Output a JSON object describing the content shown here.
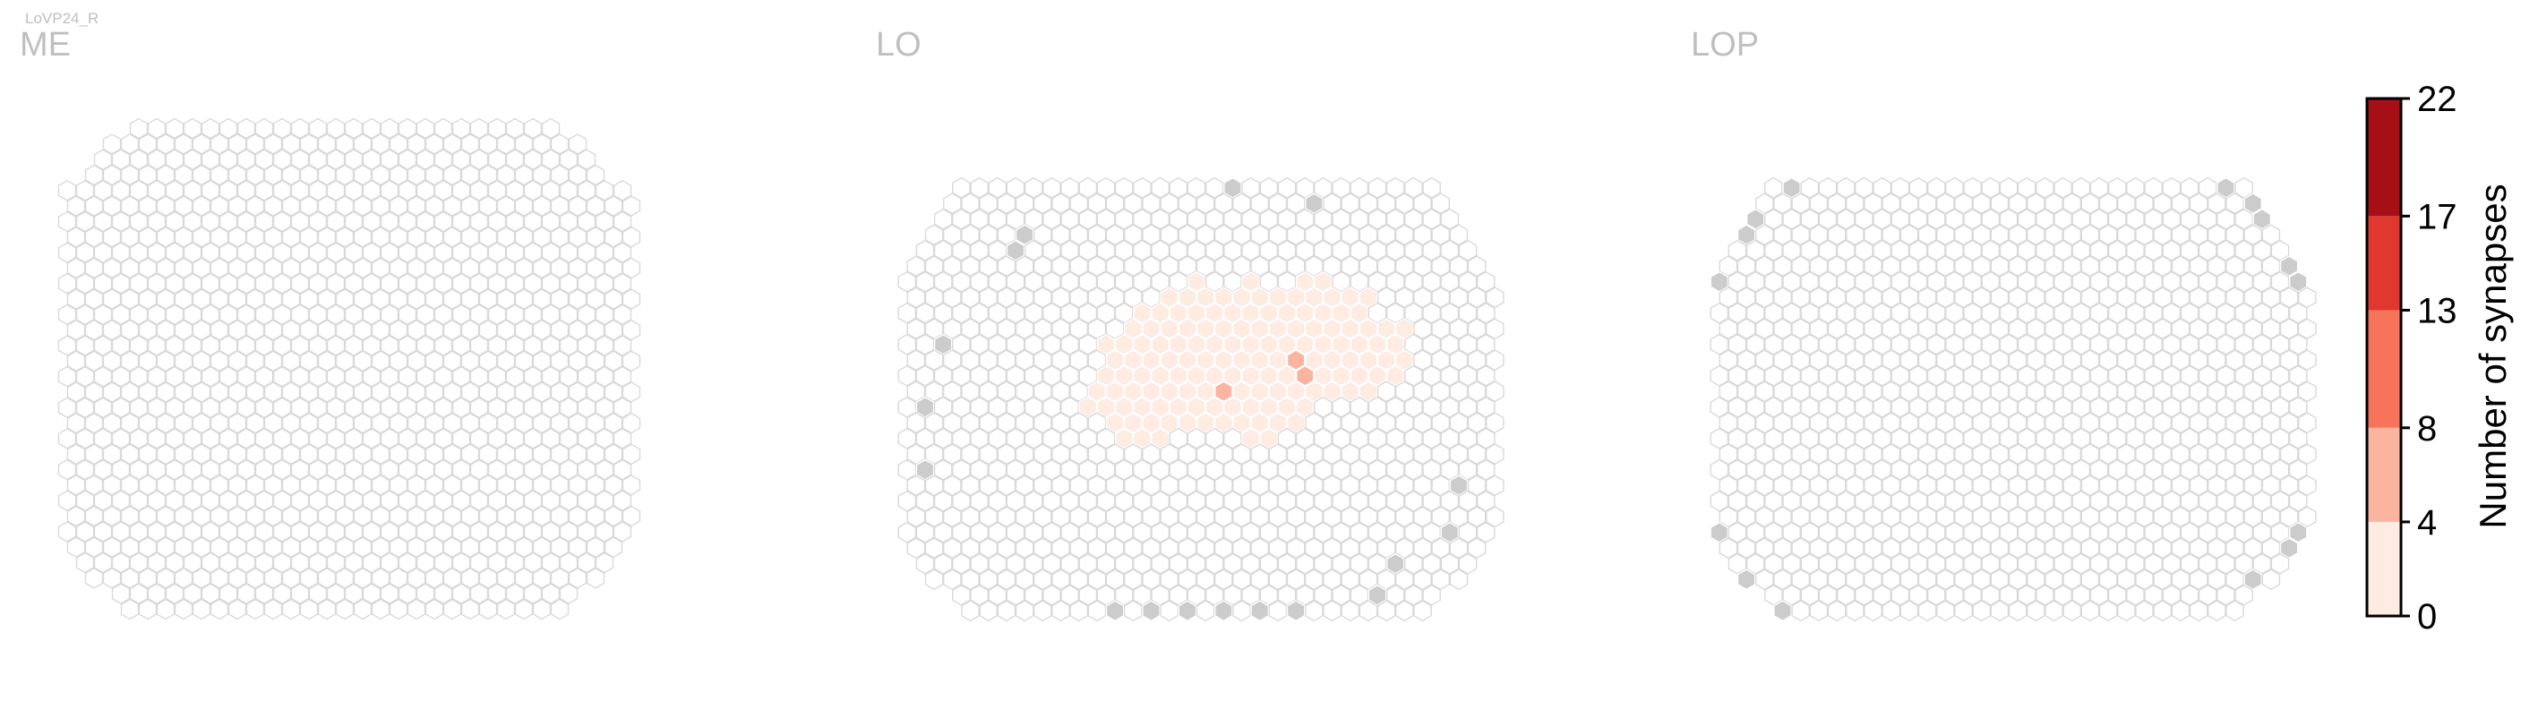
{
  "figure": {
    "cell_type": "LoVP24_R"
  },
  "chart_data": [
    {
      "type": "heatmap",
      "subtype": "hexagonal-column-map",
      "title": "ME",
      "rows": 32,
      "cols": 32,
      "cells": []
    },
    {
      "type": "heatmap",
      "subtype": "hexagonal-column-map",
      "title": "LO",
      "rows": 28,
      "cols": 33,
      "cells": [
        {
          "row": 6,
          "col": 16,
          "value": 1
        },
        {
          "row": 6,
          "col": 19,
          "value": 1
        },
        {
          "row": 6,
          "col": 22,
          "value": 1
        },
        {
          "row": 6,
          "col": 23,
          "value": 2
        },
        {
          "row": 7,
          "col": 14,
          "value": 2
        },
        {
          "row": 7,
          "col": 15,
          "value": 1
        },
        {
          "row": 7,
          "col": 16,
          "value": 1
        },
        {
          "row": 7,
          "col": 17,
          "value": 1
        },
        {
          "row": 7,
          "col": 18,
          "value": 2
        },
        {
          "row": 7,
          "col": 19,
          "value": 3
        },
        {
          "row": 7,
          "col": 20,
          "value": 3
        },
        {
          "row": 7,
          "col": 21,
          "value": 1
        },
        {
          "row": 7,
          "col": 22,
          "value": 1
        },
        {
          "row": 7,
          "col": 23,
          "value": 1
        },
        {
          "row": 7,
          "col": 24,
          "value": 1
        },
        {
          "row": 7,
          "col": 25,
          "value": 1
        },
        {
          "row": 8,
          "col": 13,
          "value": 2
        },
        {
          "row": 8,
          "col": 14,
          "value": 1
        },
        {
          "row": 8,
          "col": 15,
          "value": 1
        },
        {
          "row": 8,
          "col": 16,
          "value": 2
        },
        {
          "row": 8,
          "col": 17,
          "value": 1
        },
        {
          "row": 8,
          "col": 18,
          "value": 2
        },
        {
          "row": 8,
          "col": 19,
          "value": 2
        },
        {
          "row": 8,
          "col": 20,
          "value": 1
        },
        {
          "row": 8,
          "col": 21,
          "value": 1
        },
        {
          "row": 8,
          "col": 22,
          "value": 1
        },
        {
          "row": 8,
          "col": 23,
          "value": 1
        },
        {
          "row": 8,
          "col": 24,
          "value": 1
        },
        {
          "row": 8,
          "col": 25,
          "value": 1
        },
        {
          "row": 9,
          "col": 12,
          "value": 2
        },
        {
          "row": 9,
          "col": 13,
          "value": 1
        },
        {
          "row": 9,
          "col": 14,
          "value": 1
        },
        {
          "row": 9,
          "col": 15,
          "value": 2
        },
        {
          "row": 9,
          "col": 16,
          "value": 1
        },
        {
          "row": 9,
          "col": 17,
          "value": 2
        },
        {
          "row": 9,
          "col": 18,
          "value": 3
        },
        {
          "row": 9,
          "col": 19,
          "value": 2
        },
        {
          "row": 9,
          "col": 20,
          "value": 4
        },
        {
          "row": 9,
          "col": 21,
          "value": 2
        },
        {
          "row": 9,
          "col": 22,
          "value": 1
        },
        {
          "row": 9,
          "col": 23,
          "value": 1
        },
        {
          "row": 9,
          "col": 24,
          "value": 1
        },
        {
          "row": 9,
          "col": 25,
          "value": 2
        },
        {
          "row": 9,
          "col": 26,
          "value": 1
        },
        {
          "row": 9,
          "col": 27,
          "value": 1
        },
        {
          "row": 10,
          "col": 11,
          "value": 1
        },
        {
          "row": 10,
          "col": 12,
          "value": 1
        },
        {
          "row": 10,
          "col": 13,
          "value": 2
        },
        {
          "row": 10,
          "col": 14,
          "value": 2
        },
        {
          "row": 10,
          "col": 15,
          "value": 3
        },
        {
          "row": 10,
          "col": 16,
          "value": 1
        },
        {
          "row": 10,
          "col": 17,
          "value": 4
        },
        {
          "row": 10,
          "col": 18,
          "value": 3
        },
        {
          "row": 10,
          "col": 19,
          "value": 4
        },
        {
          "row": 10,
          "col": 20,
          "value": 3
        },
        {
          "row": 10,
          "col": 21,
          "value": 2
        },
        {
          "row": 10,
          "col": 22,
          "value": 3
        },
        {
          "row": 10,
          "col": 23,
          "value": 2
        },
        {
          "row": 10,
          "col": 24,
          "value": 1
        },
        {
          "row": 10,
          "col": 25,
          "value": 1
        },
        {
          "row": 10,
          "col": 26,
          "value": 1
        },
        {
          "row": 10,
          "col": 27,
          "value": 1
        },
        {
          "row": 11,
          "col": 11,
          "value": 2
        },
        {
          "row": 11,
          "col": 12,
          "value": 2
        },
        {
          "row": 11,
          "col": 13,
          "value": 2
        },
        {
          "row": 11,
          "col": 14,
          "value": 1
        },
        {
          "row": 11,
          "col": 15,
          "value": 3
        },
        {
          "row": 11,
          "col": 16,
          "value": 2
        },
        {
          "row": 11,
          "col": 17,
          "value": 3
        },
        {
          "row": 11,
          "col": 18,
          "value": 4
        },
        {
          "row": 11,
          "col": 19,
          "value": 3
        },
        {
          "row": 11,
          "col": 20,
          "value": 3
        },
        {
          "row": 11,
          "col": 21,
          "value": 5
        },
        {
          "row": 11,
          "col": 22,
          "value": 2
        },
        {
          "row": 11,
          "col": 23,
          "value": 3
        },
        {
          "row": 11,
          "col": 24,
          "value": 1
        },
        {
          "row": 11,
          "col": 25,
          "value": 1
        },
        {
          "row": 11,
          "col": 26,
          "value": 1
        },
        {
          "row": 11,
          "col": 27,
          "value": 1
        },
        {
          "row": 12,
          "col": 11,
          "value": 2
        },
        {
          "row": 12,
          "col": 12,
          "value": 3
        },
        {
          "row": 12,
          "col": 13,
          "value": 2
        },
        {
          "row": 12,
          "col": 14,
          "value": 3
        },
        {
          "row": 12,
          "col": 15,
          "value": 4
        },
        {
          "row": 12,
          "col": 16,
          "value": 2
        },
        {
          "row": 12,
          "col": 17,
          "value": 3
        },
        {
          "row": 12,
          "col": 18,
          "value": 4
        },
        {
          "row": 12,
          "col": 19,
          "value": 3
        },
        {
          "row": 12,
          "col": 20,
          "value": 2
        },
        {
          "row": 12,
          "col": 21,
          "value": 3
        },
        {
          "row": 12,
          "col": 22,
          "value": 5
        },
        {
          "row": 12,
          "col": 23,
          "value": 1
        },
        {
          "row": 12,
          "col": 24,
          "value": 3
        },
        {
          "row": 12,
          "col": 25,
          "value": 1
        },
        {
          "row": 12,
          "col": 26,
          "value": 1
        },
        {
          "row": 12,
          "col": 27,
          "value": 1
        },
        {
          "row": 13,
          "col": 10,
          "value": 1
        },
        {
          "row": 13,
          "col": 11,
          "value": 3
        },
        {
          "row": 13,
          "col": 12,
          "value": 2
        },
        {
          "row": 13,
          "col": 13,
          "value": 2
        },
        {
          "row": 13,
          "col": 14,
          "value": 4
        },
        {
          "row": 13,
          "col": 15,
          "value": 2
        },
        {
          "row": 13,
          "col": 16,
          "value": 3
        },
        {
          "row": 13,
          "col": 17,
          "value": 5
        },
        {
          "row": 13,
          "col": 18,
          "value": 3
        },
        {
          "row": 13,
          "col": 19,
          "value": 4
        },
        {
          "row": 13,
          "col": 20,
          "value": 3
        },
        {
          "row": 13,
          "col": 21,
          "value": 2
        },
        {
          "row": 13,
          "col": 22,
          "value": 3
        },
        {
          "row": 13,
          "col": 23,
          "value": 1
        },
        {
          "row": 13,
          "col": 24,
          "value": 2
        },
        {
          "row": 13,
          "col": 25,
          "value": 1
        },
        {
          "row": 14,
          "col": 10,
          "value": 1
        },
        {
          "row": 14,
          "col": 11,
          "value": 2
        },
        {
          "row": 14,
          "col": 12,
          "value": 3
        },
        {
          "row": 14,
          "col": 13,
          "value": 2
        },
        {
          "row": 14,
          "col": 14,
          "value": 3
        },
        {
          "row": 14,
          "col": 15,
          "value": 2
        },
        {
          "row": 14,
          "col": 16,
          "value": 1
        },
        {
          "row": 14,
          "col": 17,
          "value": 2
        },
        {
          "row": 14,
          "col": 18,
          "value": 2
        },
        {
          "row": 14,
          "col": 19,
          "value": 3
        },
        {
          "row": 14,
          "col": 20,
          "value": 2
        },
        {
          "row": 14,
          "col": 21,
          "value": 1
        },
        {
          "row": 14,
          "col": 22,
          "value": 1
        },
        {
          "row": 15,
          "col": 11,
          "value": 1
        },
        {
          "row": 15,
          "col": 12,
          "value": 2
        },
        {
          "row": 15,
          "col": 13,
          "value": 2
        },
        {
          "row": 15,
          "col": 14,
          "value": 1
        },
        {
          "row": 15,
          "col": 15,
          "value": 1
        },
        {
          "row": 15,
          "col": 16,
          "value": 1
        },
        {
          "row": 15,
          "col": 17,
          "value": 1
        },
        {
          "row": 15,
          "col": 18,
          "value": 1
        },
        {
          "row": 15,
          "col": 19,
          "value": 4
        },
        {
          "row": 15,
          "col": 20,
          "value": 1
        },
        {
          "row": 15,
          "col": 21,
          "value": 1
        },
        {
          "row": 16,
          "col": 12,
          "value": 1
        },
        {
          "row": 16,
          "col": 13,
          "value": 2
        },
        {
          "row": 16,
          "col": 14,
          "value": 1
        },
        {
          "row": 16,
          "col": 19,
          "value": 1
        },
        {
          "row": 16,
          "col": 20,
          "value": 1
        }
      ],
      "empty_columns": [
        {
          "row": 0,
          "col": 18
        },
        {
          "row": 1,
          "col": 22
        },
        {
          "row": 3,
          "col": 6
        },
        {
          "row": 4,
          "col": 6
        },
        {
          "row": 10,
          "col": 2
        },
        {
          "row": 14,
          "col": 1
        },
        {
          "row": 18,
          "col": 1
        },
        {
          "row": 19,
          "col": 30
        },
        {
          "row": 22,
          "col": 30
        },
        {
          "row": 24,
          "col": 27
        },
        {
          "row": 26,
          "col": 26
        },
        {
          "row": 27,
          "col": 11
        },
        {
          "row": 27,
          "col": 13
        },
        {
          "row": 27,
          "col": 15
        },
        {
          "row": 27,
          "col": 17
        },
        {
          "row": 27,
          "col": 19
        },
        {
          "row": 27,
          "col": 21
        }
      ]
    },
    {
      "type": "heatmap",
      "subtype": "hexagonal-column-map",
      "title": "LOP",
      "rows": 28,
      "cols": 33,
      "cells": [],
      "empty_columns": "outer ring"
    }
  ],
  "colorbar": {
    "label": "Number of synapses",
    "ticks": [
      0,
      4,
      8,
      13,
      17,
      22
    ],
    "bins": [
      {
        "from": 0,
        "to": 4,
        "color": "#FEEBE2"
      },
      {
        "from": 4,
        "to": 8,
        "color": "#FBB4A0"
      },
      {
        "from": 8,
        "to": 13,
        "color": "#F7745B"
      },
      {
        "from": 13,
        "to": 17,
        "color": "#E0382F"
      },
      {
        "from": 17,
        "to": 22,
        "color": "#A50F15"
      }
    ]
  },
  "colors": {
    "hex_outline": "#D9D9D9",
    "empty_column": "#CCCCCC",
    "region_label": "#BFBFBF"
  }
}
